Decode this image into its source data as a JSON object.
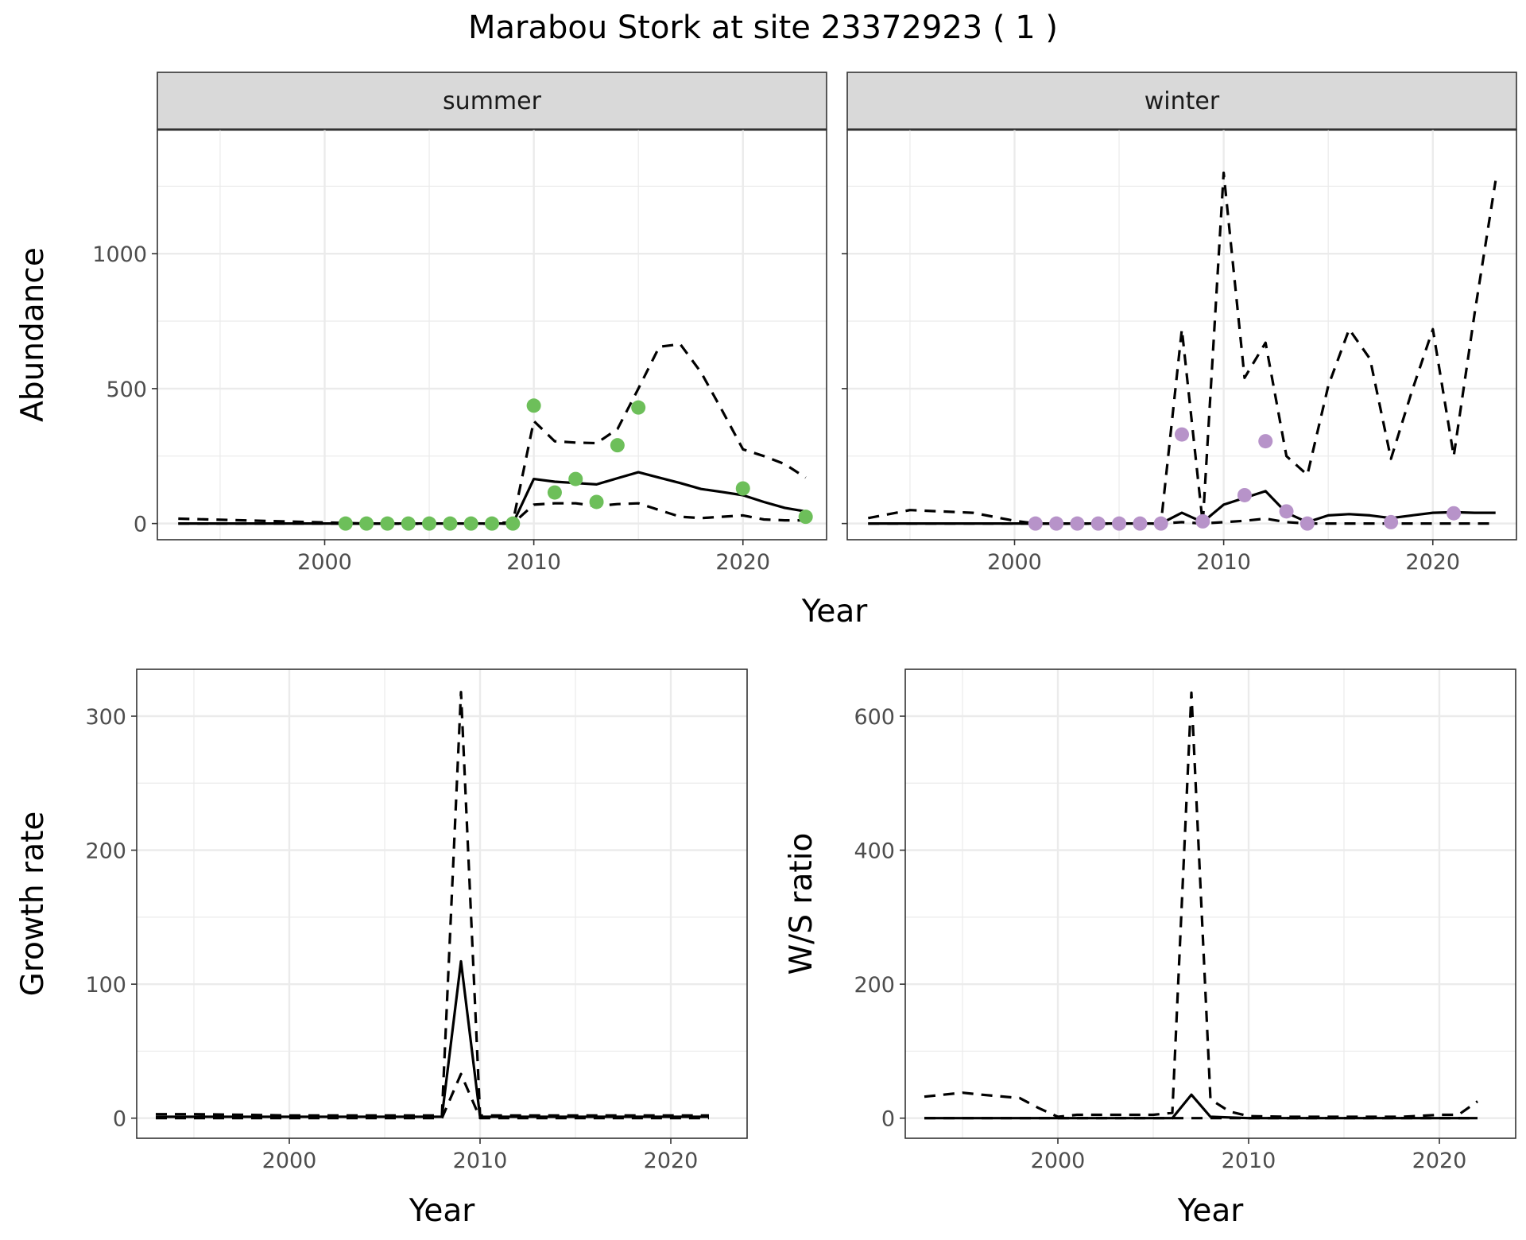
{
  "figure": {
    "title": "Marabou Stork at site 23372923 ( 1 )",
    "bottom_xlabel": "Year"
  },
  "colors": {
    "summer_points": "#6dbf5a",
    "winter_points": "#b793c9",
    "lines": "#000000",
    "strip_background": "#d9d9d9"
  },
  "chart_data": [
    {
      "type": "line",
      "panel": "summer",
      "strip_label": "summer",
      "ylabel": "Abundance",
      "xlim": [
        1992,
        2024
      ],
      "ylim": [
        -60,
        1460
      ],
      "x_ticks": [
        2000,
        2010,
        2020
      ],
      "y_ticks": [
        0,
        500,
        1000
      ],
      "series": [
        {
          "style": "solid",
          "x": [
            1993,
            2001,
            2002,
            2003,
            2004,
            2005,
            2006,
            2007,
            2008,
            2009,
            2010,
            2011,
            2012,
            2013,
            2014,
            2015,
            2016,
            2017,
            2018,
            2019,
            2020,
            2021,
            2022,
            2023
          ],
          "values": [
            0,
            0,
            0,
            0,
            0,
            0,
            0,
            0,
            0,
            0,
            165,
            155,
            150,
            145,
            168,
            190,
            170,
            150,
            128,
            117,
            105,
            80,
            58,
            45
          ]
        },
        {
          "style": "dashed",
          "x": [
            1993,
            2001,
            2002,
            2003,
            2004,
            2005,
            2006,
            2007,
            2008,
            2009,
            2010,
            2011,
            2012,
            2013,
            2014,
            2015,
            2016,
            2017,
            2018,
            2019,
            2020,
            2021,
            2022,
            2023
          ],
          "values": [
            18,
            2,
            0,
            0,
            0,
            0,
            0,
            0,
            0,
            5,
            380,
            305,
            300,
            298,
            350,
            500,
            655,
            665,
            560,
            420,
            275,
            250,
            220,
            170
          ]
        },
        {
          "style": "dashed",
          "x": [
            1993,
            2001,
            2002,
            2003,
            2004,
            2005,
            2006,
            2007,
            2008,
            2009,
            2010,
            2011,
            2012,
            2013,
            2014,
            2015,
            2016,
            2017,
            2018,
            2019,
            2020,
            2021,
            2022,
            2023
          ],
          "values": [
            0,
            0,
            0,
            0,
            0,
            0,
            0,
            0,
            0,
            0,
            70,
            75,
            75,
            65,
            72,
            75,
            50,
            25,
            20,
            25,
            30,
            15,
            12,
            12
          ]
        },
        {
          "style": "points",
          "x": [
            2001,
            2002,
            2003,
            2004,
            2005,
            2006,
            2007,
            2008,
            2009,
            2010,
            2011,
            2012,
            2013,
            2014,
            2015,
            2020,
            2023
          ],
          "values": [
            0,
            0,
            0,
            0,
            0,
            0,
            0,
            0,
            0,
            437,
            115,
            165,
            80,
            290,
            430,
            130,
            25
          ]
        }
      ]
    },
    {
      "type": "line",
      "panel": "winter",
      "strip_label": "winter",
      "ylabel": "",
      "xlim": [
        1992,
        2024
      ],
      "ylim": [
        -60,
        1460
      ],
      "x_ticks": [
        2000,
        2010,
        2020
      ],
      "y_ticks": [
        0,
        500,
        1000
      ],
      "series": [
        {
          "style": "solid",
          "x": [
            1993,
            2001,
            2002,
            2003,
            2004,
            2005,
            2006,
            2007,
            2008,
            2009,
            2010,
            2011,
            2012,
            2013,
            2014,
            2015,
            2016,
            2017,
            2018,
            2019,
            2020,
            2021,
            2022,
            2023
          ],
          "values": [
            0,
            0,
            0,
            0,
            0,
            0,
            0,
            0,
            40,
            5,
            70,
            95,
            120,
            40,
            5,
            30,
            35,
            30,
            20,
            30,
            40,
            42,
            40,
            40
          ]
        },
        {
          "style": "dashed",
          "x": [
            1993,
            1995,
            1998,
            2000,
            2001,
            2002,
            2003,
            2004,
            2005,
            2006,
            2007,
            2008,
            2009,
            2010,
            2011,
            2012,
            2013,
            2014,
            2015,
            2016,
            2017,
            2018,
            2019,
            2020,
            2021,
            2022,
            2023
          ],
          "values": [
            20,
            50,
            40,
            10,
            0,
            0,
            0,
            0,
            0,
            0,
            0,
            720,
            0,
            1300,
            540,
            670,
            250,
            180,
            510,
            720,
            610,
            240,
            490,
            720,
            250,
            780,
            1270
          ]
        },
        {
          "style": "dashed",
          "x": [
            1993,
            2001,
            2002,
            2003,
            2004,
            2005,
            2006,
            2007,
            2008,
            2009,
            2010,
            2011,
            2012,
            2013,
            2014,
            2015,
            2016,
            2017,
            2018,
            2019,
            2020,
            2021,
            2022,
            2023
          ],
          "values": [
            0,
            0,
            0,
            0,
            0,
            0,
            0,
            0,
            5,
            0,
            5,
            10,
            18,
            5,
            0,
            0,
            0,
            0,
            0,
            0,
            0,
            0,
            0,
            0
          ]
        },
        {
          "style": "points",
          "x": [
            2001,
            2002,
            2003,
            2004,
            2005,
            2006,
            2007,
            2008,
            2009,
            2011,
            2012,
            2013,
            2014,
            2018,
            2021
          ],
          "values": [
            0,
            0,
            0,
            0,
            0,
            0,
            0,
            330,
            8,
            105,
            305,
            45,
            0,
            5,
            38
          ]
        }
      ]
    },
    {
      "type": "line",
      "panel": "growth",
      "ylabel": "Growth rate",
      "xlabel": "Year",
      "xlim": [
        1992,
        2024
      ],
      "ylim": [
        -15,
        335
      ],
      "x_ticks": [
        2000,
        2010,
        2020
      ],
      "y_ticks": [
        0,
        100,
        200,
        300
      ],
      "series": [
        {
          "style": "solid",
          "x": [
            1993,
            2000,
            2005,
            2008,
            2009,
            2010,
            2015,
            2022
          ],
          "values": [
            1,
            1,
            1,
            1,
            117,
            1,
            1,
            1
          ]
        },
        {
          "style": "dashed",
          "x": [
            1993,
            1995,
            2000,
            2005,
            2008,
            2009,
            2010,
            2013,
            2015,
            2022
          ],
          "values": [
            3,
            3,
            2,
            2,
            2,
            318,
            2,
            2,
            2,
            2
          ]
        },
        {
          "style": "dashed",
          "x": [
            1993,
            2000,
            2008,
            2009,
            2010,
            2015,
            2022
          ],
          "values": [
            0,
            0,
            0,
            33,
            0,
            0,
            0
          ]
        }
      ]
    },
    {
      "type": "line",
      "panel": "ratio",
      "ylabel": "W/S ratio",
      "xlabel": "Year",
      "xlim": [
        1992,
        2024
      ],
      "ylim": [
        -30,
        670
      ],
      "x_ticks": [
        2000,
        2010,
        2020
      ],
      "y_ticks": [
        0,
        200,
        400,
        600
      ],
      "series": [
        {
          "style": "solid",
          "x": [
            1993,
            2000,
            2005,
            2006,
            2007,
            2008,
            2010,
            2015,
            2022
          ],
          "values": [
            0,
            0,
            0,
            0,
            35,
            2,
            0,
            0,
            0
          ]
        },
        {
          "style": "dashed",
          "x": [
            1993,
            1995,
            1996,
            1998,
            1999,
            2000,
            2001,
            2003,
            2005,
            2006,
            2007,
            2008,
            2009,
            2010,
            2012,
            2015,
            2018,
            2020,
            2021,
            2022
          ],
          "values": [
            32,
            38,
            35,
            30,
            15,
            2,
            5,
            5,
            5,
            8,
            635,
            28,
            10,
            3,
            2,
            2,
            2,
            5,
            5,
            25
          ]
        },
        {
          "style": "dashed",
          "x": [
            1993,
            2000,
            2006,
            2007,
            2008,
            2015,
            2022
          ],
          "values": [
            0,
            0,
            0,
            0,
            0,
            0,
            0
          ]
        }
      ]
    }
  ]
}
